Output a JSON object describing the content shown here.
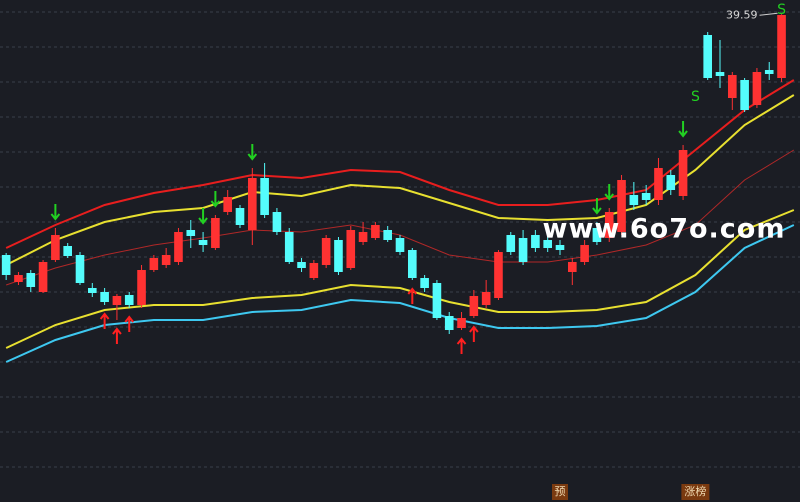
{
  "chart_data": {
    "type": "candlestick",
    "xlim": [
      -0.5,
      64.5
    ],
    "ylim": [
      20.08,
      40.16
    ],
    "yticks": [
      39.68,
      38.28,
      36.88,
      35.48,
      34.08,
      32.68,
      31.28,
      29.88,
      28.48,
      27.08,
      25.68,
      24.28,
      22.88,
      21.48
    ],
    "grid": true,
    "up_color": "#ff3232",
    "down_color": "#54fcfc",
    "open": [
      29.96,
      28.88,
      29.24,
      28.48,
      29.76,
      30.32,
      29.96,
      28.64,
      28.48,
      27.96,
      28.36,
      27.96,
      29.36,
      29.56,
      29.68,
      30.96,
      30.56,
      30.24,
      31.68,
      31.84,
      30.96,
      33.04,
      31.68,
      30.88,
      29.68,
      29.04,
      29.56,
      30.56,
      29.44,
      30.48,
      30.64,
      30.96,
      30.64,
      30.16,
      29.04,
      28.84,
      27.52,
      27.04,
      27.52,
      27.96,
      28.24,
      30.76,
      30.64,
      30.76,
      30.56,
      30.36,
      29.28,
      29.68,
      31.04,
      30.64,
      30.88,
      32.36,
      32.44,
      32.16,
      33.16,
      32.32,
      null,
      38.76,
      37.28,
      36.24,
      36.96,
      35.96,
      37.36,
      37.04
    ],
    "high": [
      30.04,
      29.28,
      29.36,
      29.76,
      31.04,
      30.44,
      30.08,
      28.84,
      28.64,
      28.4,
      28.48,
      29.56,
      29.96,
      30.24,
      31.04,
      31.36,
      30.88,
      31.56,
      32.56,
      31.96,
      33.44,
      33.64,
      31.84,
      31.04,
      29.84,
      29.76,
      30.76,
      30.68,
      31.12,
      31.28,
      31.28,
      31.12,
      30.76,
      30.24,
      29.16,
      28.96,
      27.68,
      27.68,
      28.56,
      28.96,
      30.16,
      30.88,
      30.96,
      30.96,
      31.04,
      30.56,
      29.84,
      30.56,
      31.28,
      31.84,
      33.16,
      32.88,
      32.76,
      33.84,
      33.36,
      34.36,
      null,
      38.88,
      38.56,
      37.28,
      37.04,
      37.44,
      37.68,
      39.59
    ],
    "low": [
      28.96,
      28.76,
      28.48,
      28.44,
      29.68,
      29.84,
      28.76,
      28.28,
      27.96,
      27.36,
      27.84,
      27.84,
      29.28,
      29.44,
      29.56,
      30.24,
      30.08,
      30.16,
      31.56,
      31.04,
      30.36,
      31.44,
      30.76,
      29.6,
      29.28,
      28.96,
      29.44,
      29.16,
      29.36,
      30.36,
      30.56,
      30.48,
      29.96,
      28.96,
      28.48,
      27.36,
      26.8,
      26.96,
      27.44,
      27.84,
      28.16,
      29.96,
      29.56,
      30.08,
      30.08,
      29.96,
      28.76,
      29.56,
      30.36,
      30.48,
      30.76,
      31.76,
      31.96,
      31.96,
      32.36,
      32.16,
      null,
      36.96,
      36.64,
      35.76,
      35.68,
      35.84,
      36.96,
      36.88
    ],
    "close": [
      29.16,
      29.16,
      28.68,
      29.68,
      30.76,
      29.92,
      28.84,
      28.44,
      28.08,
      28.32,
      27.96,
      29.36,
      29.84,
      29.96,
      30.88,
      30.72,
      30.36,
      31.44,
      32.28,
      31.16,
      33.04,
      31.56,
      30.88,
      29.68,
      29.44,
      29.64,
      30.64,
      29.28,
      30.96,
      30.88,
      31.16,
      30.56,
      30.08,
      29.04,
      28.64,
      27.44,
      26.96,
      27.44,
      28.32,
      28.48,
      30.08,
      30.08,
      29.68,
      30.24,
      30.24,
      30.16,
      29.68,
      30.36,
      30.48,
      31.68,
      32.96,
      31.96,
      32.16,
      33.44,
      32.56,
      34.16,
      null,
      37.04,
      37.12,
      37.16,
      35.76,
      37.28,
      37.2,
      39.56
    ],
    "band_x": [
      0,
      4,
      8,
      12,
      16,
      20,
      24,
      28,
      32,
      36,
      40,
      44,
      48,
      52,
      56,
      60,
      64
    ],
    "series": [
      {
        "color": "#e81e1e",
        "values": [
          30.24,
          31.16,
          31.96,
          32.44,
          32.76,
          33.16,
          33.04,
          33.36,
          33.28,
          32.56,
          31.96,
          31.96,
          32.16,
          32.56,
          34.16,
          35.76,
          36.96
        ]
      },
      {
        "color": "#e8e030",
        "values": [
          29.56,
          30.56,
          31.28,
          31.68,
          31.84,
          32.48,
          32.32,
          32.76,
          32.64,
          32.04,
          31.44,
          31.36,
          31.44,
          31.96,
          33.36,
          35.16,
          36.36
        ]
      },
      {
        "color": "#b02828",
        "values": [
          28.76,
          29.44,
          29.96,
          30.36,
          30.64,
          30.96,
          30.88,
          31.16,
          30.76,
          29.96,
          29.68,
          29.68,
          29.96,
          30.36,
          31.16,
          32.96,
          34.16
        ]
      },
      {
        "color": "#e8e030",
        "values": [
          26.24,
          27.16,
          27.76,
          27.96,
          27.96,
          28.24,
          28.36,
          28.76,
          28.64,
          28.08,
          27.68,
          27.68,
          27.76,
          28.08,
          29.16,
          30.96,
          31.76
        ]
      },
      {
        "color": "#3ec8f0",
        "values": [
          25.68,
          26.56,
          27.16,
          27.36,
          27.36,
          27.68,
          27.76,
          28.16,
          28.04,
          27.44,
          27.04,
          27.04,
          27.12,
          27.44,
          28.48,
          30.24,
          31.16
        ]
      }
    ],
    "sell_signals": [
      4,
      16,
      17,
      20,
      48,
      49,
      55
    ],
    "buy_signals": [
      8,
      9,
      10,
      33,
      37,
      38
    ],
    "s_labels": [
      {
        "index": 56,
        "price": 36.28,
        "label": "S"
      },
      {
        "index": 63,
        "price": 39.76,
        "label": "S"
      }
    ],
    "high_label_index": 63,
    "watermark": "www.6o7o.com",
    "markers": [
      {
        "index": 45,
        "label": "预"
      },
      {
        "index": 56,
        "label": "涨榜"
      }
    ]
  }
}
